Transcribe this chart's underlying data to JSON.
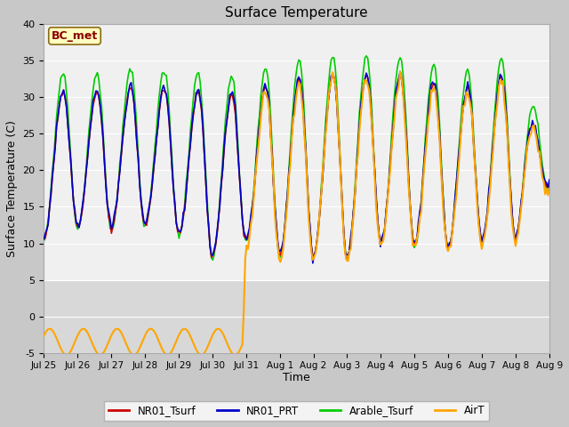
{
  "title": "Surface Temperature",
  "ylabel": "Surface Temperature (C)",
  "xlabel": "Time",
  "ylim": [
    -5,
    40
  ],
  "annotation_text": "BC_met",
  "annotation_color": "#8B0000",
  "annotation_bg": "#FFFFC0",
  "series": {
    "NR01_Tsurf": {
      "color": "#CC0000",
      "lw": 1.2,
      "zorder": 3
    },
    "NR01_PRT": {
      "color": "#0000CC",
      "lw": 1.2,
      "zorder": 4
    },
    "Arable_Tsurf": {
      "color": "#00CC00",
      "lw": 1.2,
      "zorder": 2
    },
    "AirT": {
      "color": "#FFA500",
      "lw": 1.5,
      "zorder": 5
    }
  },
  "xtick_labels": [
    "Jul 25",
    "Jul 26",
    "Jul 27",
    "Jul 28",
    "Jul 29",
    "Jul 30",
    "Jul 31",
    "Aug 1",
    "Aug 2",
    "Aug 3",
    "Aug 4",
    "Aug 5",
    "Aug 6",
    "Aug 7",
    "Aug 8",
    "Aug 9"
  ],
  "ytick_values": [
    -5,
    0,
    5,
    10,
    15,
    20,
    25,
    30,
    35,
    40
  ],
  "upper_bg": "#F0F0F0",
  "lower_bg": "#D8D8D8",
  "plot_bg": "#F5F5F5"
}
